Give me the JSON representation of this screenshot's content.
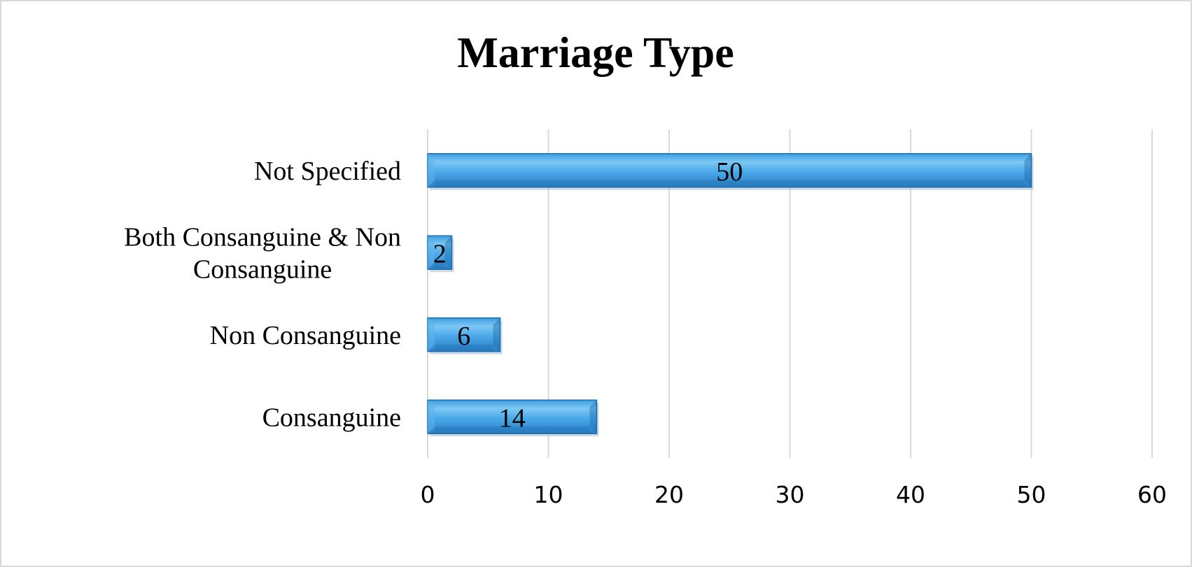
{
  "chart_data": {
    "type": "bar",
    "orientation": "horizontal",
    "title": "Marriage Type",
    "categories": [
      "Not Specified",
      "Both Consanguine & Non Consanguine",
      "Non Consanguine",
      "Consanguine"
    ],
    "category_lines": [
      [
        "Not Specified"
      ],
      [
        "Both Consanguine & Non",
        "Consanguine"
      ],
      [
        "Non Consanguine"
      ],
      [
        "Consanguine"
      ]
    ],
    "values": [
      50,
      2,
      6,
      14
    ],
    "xlim": [
      0,
      60
    ],
    "xticks": [
      "0",
      "10",
      "20",
      "30",
      "40",
      "50",
      "60"
    ],
    "xlabel": "",
    "ylabel": "",
    "grid": "vertical",
    "legend": "none",
    "data_labels": true,
    "colors": {
      "bar_light": "#7cc8f4",
      "bar_mid": "#3c9de0",
      "bar_dark": "#1f6fb0",
      "grid": "#d9d9d9"
    }
  }
}
